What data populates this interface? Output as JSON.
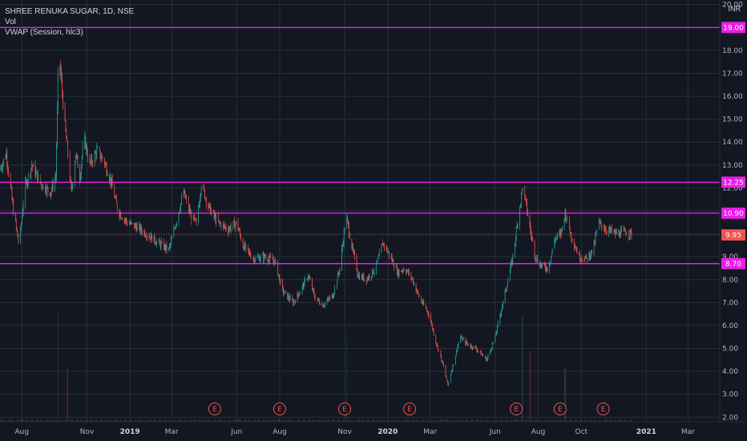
{
  "legend": {
    "symbol": "SHREE RENUKA SUGAR, 1D, NSE",
    "volume": "Vol",
    "vwap": "VWAP (Session, hlc3)"
  },
  "currency": "INR",
  "colors": {
    "background": "#131722",
    "grid": "#2a2e39",
    "candle_up": "#26a69a",
    "candle_down": "#ef5350",
    "level_line": "#e91ee6",
    "current_price": "#ef5350",
    "earnings": "#ef5350"
  },
  "chart_data": {
    "type": "candlestick",
    "y_axis": {
      "min": 1.8,
      "max": 20.2,
      "ticks": [
        "2.00",
        "3.00",
        "4.00",
        "5.00",
        "6.00",
        "7.00",
        "8.00",
        "9.00",
        "10.00",
        "11.00",
        "12.00",
        "13.00",
        "14.00",
        "15.00",
        "16.00",
        "17.00",
        "18.00",
        "19.00",
        "20.00"
      ]
    },
    "x_axis": {
      "start": "2018-07-01",
      "end": "2021-04-15",
      "ticks": [
        {
          "label": "Aug",
          "date": "2018-08-01"
        },
        {
          "label": "Nov",
          "date": "2018-11-01"
        },
        {
          "label": "2019",
          "date": "2019-01-01",
          "bold": true
        },
        {
          "label": "Mar",
          "date": "2019-03-01"
        },
        {
          "label": "Jun",
          "date": "2019-06-01"
        },
        {
          "label": "Aug",
          "date": "2019-08-01"
        },
        {
          "label": "Nov",
          "date": "2019-11-01"
        },
        {
          "label": "2020",
          "date": "2020-01-01",
          "bold": true
        },
        {
          "label": "Mar",
          "date": "2020-03-01"
        },
        {
          "label": "Jun",
          "date": "2020-06-01"
        },
        {
          "label": "Aug",
          "date": "2020-08-01"
        },
        {
          "label": "Oct",
          "date": "2020-10-01"
        },
        {
          "label": "2021",
          "date": "2021-01-01",
          "bold": true
        },
        {
          "label": "Mar",
          "date": "2021-03-01"
        }
      ]
    },
    "horizontal_levels": [
      {
        "value": 19.0,
        "label": "19.00"
      },
      {
        "value": 12.25,
        "label": "12.25"
      },
      {
        "value": 10.9,
        "label": "10.90"
      },
      {
        "value": 8.7,
        "label": "8.70"
      }
    ],
    "current_price": {
      "value": 9.95,
      "label": "9.95"
    },
    "earnings_markers": [
      {
        "date": "2019-05-01",
        "label": "E"
      },
      {
        "date": "2019-08-01",
        "label": "E"
      },
      {
        "date": "2019-11-01",
        "label": "E"
      },
      {
        "date": "2020-02-01",
        "label": "E"
      },
      {
        "date": "2020-07-01",
        "label": "E"
      },
      {
        "date": "2020-09-01",
        "label": "E"
      },
      {
        "date": "2020-11-01",
        "label": "E"
      }
    ],
    "price_keypoints": [
      [
        "2018-07-01",
        12.8
      ],
      [
        "2018-07-10",
        13.5
      ],
      [
        "2018-07-20",
        11.0
      ],
      [
        "2018-07-28",
        9.5
      ],
      [
        "2018-08-05",
        12.0
      ],
      [
        "2018-08-15",
        13.0
      ],
      [
        "2018-08-28",
        12.2
      ],
      [
        "2018-09-10",
        11.8
      ],
      [
        "2018-09-18",
        12.5
      ],
      [
        "2018-09-22",
        18.2
      ],
      [
        "2018-09-30",
        15.0
      ],
      [
        "2018-10-05",
        13.5
      ],
      [
        "2018-10-10",
        11.8
      ],
      [
        "2018-10-16",
        13.5
      ],
      [
        "2018-10-22",
        12.5
      ],
      [
        "2018-10-28",
        14.2
      ],
      [
        "2018-11-05",
        13.0
      ],
      [
        "2018-11-15",
        13.6
      ],
      [
        "2018-11-25",
        13.2
      ],
      [
        "2018-12-05",
        12.3
      ],
      [
        "2018-12-15",
        11.0
      ],
      [
        "2018-12-28",
        10.5
      ],
      [
        "2019-01-10",
        10.3
      ],
      [
        "2019-01-25",
        10.0
      ],
      [
        "2019-02-10",
        9.6
      ],
      [
        "2019-02-25",
        9.3
      ],
      [
        "2019-03-08",
        10.6
      ],
      [
        "2019-03-18",
        11.8
      ],
      [
        "2019-03-28",
        10.8
      ],
      [
        "2019-04-05",
        10.4
      ],
      [
        "2019-04-12",
        12.2
      ],
      [
        "2019-04-22",
        11.2
      ],
      [
        "2019-05-05",
        10.5
      ],
      [
        "2019-05-20",
        10.2
      ],
      [
        "2019-06-01",
        10.5
      ],
      [
        "2019-06-10",
        9.5
      ],
      [
        "2019-06-25",
        8.9
      ],
      [
        "2019-07-10",
        9.0
      ],
      [
        "2019-07-25",
        8.8
      ],
      [
        "2019-08-05",
        7.5
      ],
      [
        "2019-08-20",
        7.0
      ],
      [
        "2019-09-01",
        7.6
      ],
      [
        "2019-09-10",
        8.2
      ],
      [
        "2019-09-20",
        7.2
      ],
      [
        "2019-10-01",
        6.9
      ],
      [
        "2019-10-15",
        7.3
      ],
      [
        "2019-10-25",
        8.5
      ],
      [
        "2019-11-03",
        10.8
      ],
      [
        "2019-11-10",
        9.6
      ],
      [
        "2019-11-20",
        8.2
      ],
      [
        "2019-12-01",
        8.0
      ],
      [
        "2019-12-15",
        8.5
      ],
      [
        "2019-12-25",
        9.6
      ],
      [
        "2020-01-05",
        9.0
      ],
      [
        "2020-01-15",
        8.3
      ],
      [
        "2020-01-25",
        8.5
      ],
      [
        "2020-02-05",
        8.0
      ],
      [
        "2020-02-15",
        7.2
      ],
      [
        "2020-02-28",
        6.5
      ],
      [
        "2020-03-10",
        5.2
      ],
      [
        "2020-03-20",
        4.2
      ],
      [
        "2020-03-26",
        3.4
      ],
      [
        "2020-04-05",
        4.6
      ],
      [
        "2020-04-12",
        5.5
      ],
      [
        "2020-04-22",
        5.2
      ],
      [
        "2020-05-05",
        5.0
      ],
      [
        "2020-05-20",
        4.5
      ],
      [
        "2020-06-01",
        5.5
      ],
      [
        "2020-06-12",
        7.0
      ],
      [
        "2020-06-25",
        8.8
      ],
      [
        "2020-07-05",
        11.0
      ],
      [
        "2020-07-10",
        12.1
      ],
      [
        "2020-07-20",
        10.3
      ],
      [
        "2020-07-28",
        9.0
      ],
      [
        "2020-08-05",
        8.6
      ],
      [
        "2020-08-15",
        8.5
      ],
      [
        "2020-08-25",
        9.8
      ],
      [
        "2020-09-02",
        10.0
      ],
      [
        "2020-09-08",
        10.9
      ],
      [
        "2020-09-18",
        9.8
      ],
      [
        "2020-09-28",
        9.0
      ],
      [
        "2020-10-08",
        8.9
      ],
      [
        "2020-10-18",
        9.3
      ],
      [
        "2020-10-25",
        10.5
      ],
      [
        "2020-11-05",
        10.2
      ],
      [
        "2020-11-20",
        10.0
      ],
      [
        "2020-12-05",
        10.1
      ],
      [
        "2020-12-12",
        9.95
      ]
    ],
    "volume_spikes": [
      {
        "date": "2018-09-22",
        "value": 12
      },
      {
        "date": "2018-10-05",
        "value": 3
      },
      {
        "date": "2019-11-03",
        "value": 5
      },
      {
        "date": "2020-07-10",
        "value": 6
      },
      {
        "date": "2020-07-20",
        "value": 4
      },
      {
        "date": "2020-09-08",
        "value": 3
      }
    ]
  }
}
